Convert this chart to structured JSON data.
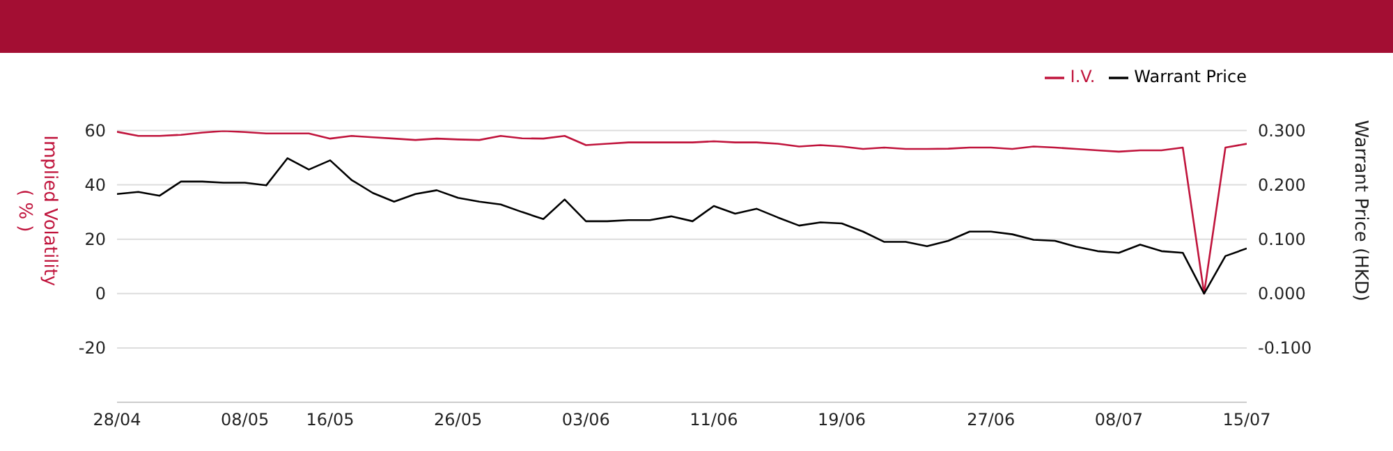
{
  "chart_data": {
    "type": "line",
    "ylabel": "Implied Volatility ( % )",
    "y2label": "Warrant Price (HKD)",
    "categories": [
      "28/04",
      null,
      null,
      null,
      null,
      null,
      "08/05",
      null,
      null,
      null,
      "16/05",
      null,
      null,
      null,
      null,
      null,
      "26/05",
      null,
      null,
      null,
      null,
      null,
      "03/06",
      null,
      null,
      null,
      null,
      null,
      "11/06",
      null,
      null,
      null,
      null,
      null,
      "19/06",
      null,
      null,
      null,
      null,
      null,
      null,
      "27/06",
      null,
      null,
      null,
      null,
      null,
      "08/07",
      null,
      null,
      null,
      null,
      null,
      "15/07"
    ],
    "series": [
      {
        "name": "I.V.",
        "color": "#c0143c",
        "values": [
          59.5,
          58.0,
          58.0,
          58.4,
          59.2,
          59.8,
          59.4,
          58.9,
          58.9,
          58.9,
          57.0,
          58.0,
          57.5,
          57.0,
          56.5,
          57.0,
          56.7,
          56.5,
          58.0,
          57.1,
          57.0,
          58.0,
          54.6,
          55.1,
          55.6,
          55.6,
          55.6,
          55.6,
          56.0,
          55.6,
          55.6,
          55.1,
          54.1,
          54.6,
          54.1,
          53.2,
          53.7,
          53.2,
          53.2,
          53.3,
          53.7,
          53.7,
          53.2,
          54.1,
          53.7,
          53.2,
          52.7,
          52.2,
          52.7,
          52.7,
          53.7,
          0,
          53.7,
          55.1
        ]
      },
      {
        "name": "Warrant Price",
        "color": "#000000",
        "axis": "y2",
        "values": [
          0.183,
          0.187,
          0.18,
          0.206,
          0.206,
          0.204,
          0.204,
          0.199,
          0.249,
          0.228,
          0.245,
          0.209,
          0.185,
          0.169,
          0.183,
          0.19,
          0.176,
          0.169,
          0.164,
          0.15,
          0.137,
          0.173,
          0.133,
          0.133,
          0.135,
          0.135,
          0.142,
          0.133,
          0.161,
          0.147,
          0.156,
          0.14,
          0.125,
          0.131,
          0.129,
          0.114,
          0.095,
          0.095,
          0.087,
          0.097,
          0.114,
          0.114,
          0.109,
          0.099,
          0.097,
          0.086,
          0.078,
          0.075,
          0.09,
          0.078,
          0.075,
          0.0,
          0.069,
          0.083
        ]
      }
    ],
    "ylim": [
      -40,
      60
    ],
    "yticks": [
      -20,
      0,
      20,
      40,
      60
    ],
    "y2lim": [
      -0.2,
      0.3
    ],
    "y2ticks": [
      {
        "value": -0.1,
        "label": "-0.100"
      },
      {
        "value": 0,
        "label": "0.000"
      },
      {
        "value": 0.1,
        "label": "0.100"
      },
      {
        "value": 0.2,
        "label": "0.200"
      },
      {
        "value": 0.3,
        "label": "0.300"
      }
    ],
    "grid": "y",
    "legend": "top right",
    "marker": "none",
    "line_style": "solid"
  }
}
